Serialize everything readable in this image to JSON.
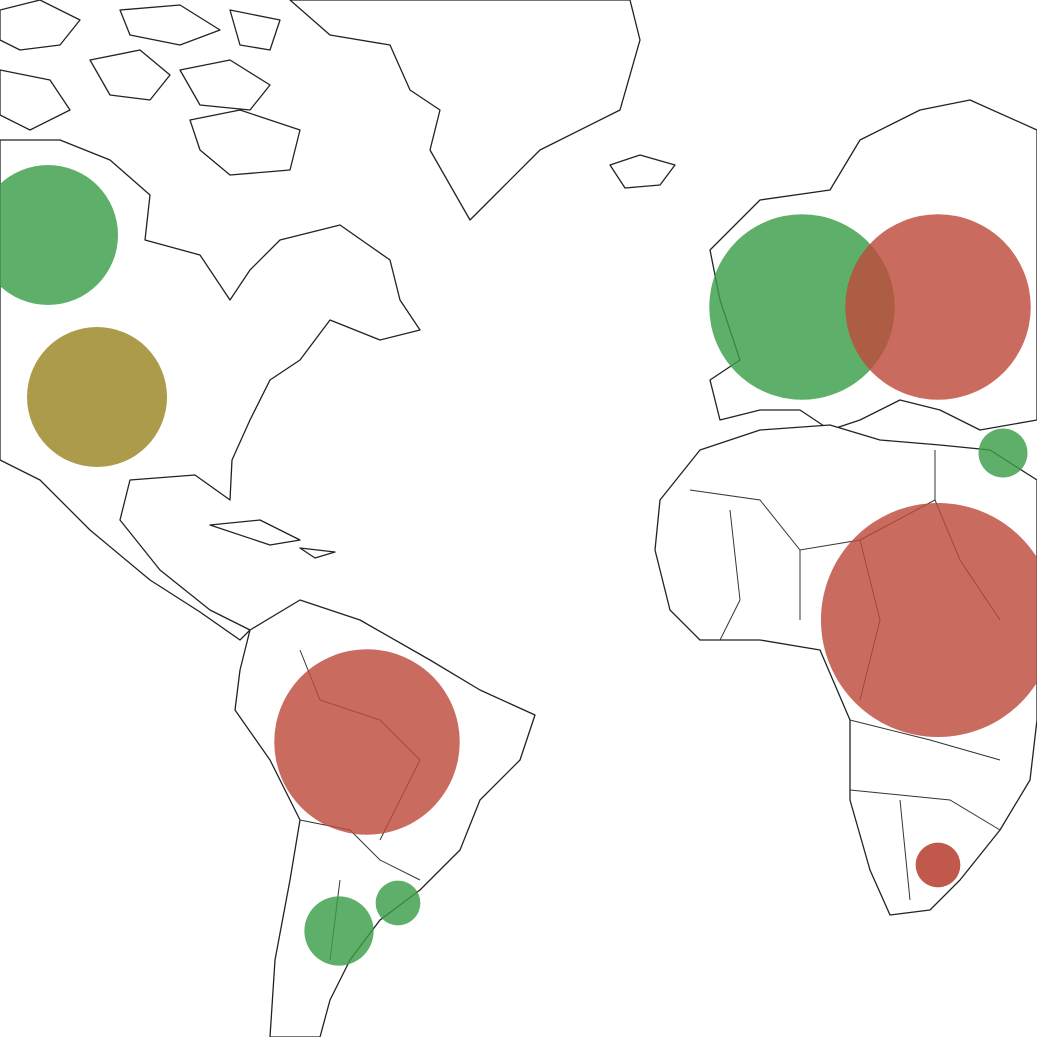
{
  "map": {
    "bubbles": [
      {
        "color": "#3a9e48",
        "value": 49
      },
      {
        "color": "#998522",
        "value": 49
      },
      {
        "color": "#bd4a3b",
        "value": 86
      },
      {
        "color": "#3a9e48",
        "value": 86
      },
      {
        "color": "#bd4a3b",
        "value": 86
      },
      {
        "color": "#bd4a3b",
        "value": 137
      },
      {
        "color": "#3a9e48",
        "value": 6
      },
      {
        "color": "#b23525",
        "value": 5
      },
      {
        "color": "#3a9e48",
        "value": 12
      },
      {
        "color": "#3a9e48",
        "value": 5
      }
    ]
  }
}
